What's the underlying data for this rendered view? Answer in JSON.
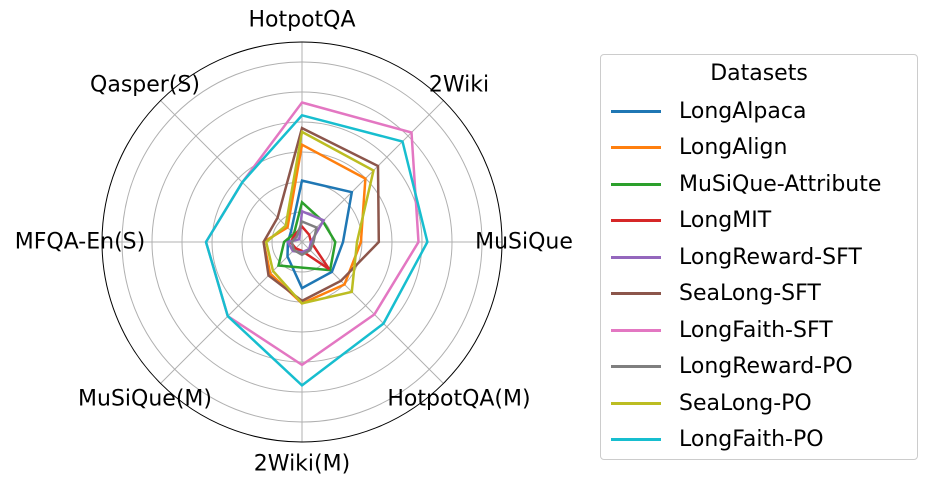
{
  "chart_data": {
    "type": "radar",
    "axes": [
      "HotpotQA",
      "2Wiki",
      "MuSiQue",
      "HotpotQA(M)",
      "2Wiki(M)",
      "MuSiQue(M)",
      "MFQA-En(S)",
      "Qasper(S)"
    ],
    "rlim": [
      0,
      1
    ],
    "grid": true,
    "legend_title": "Datasets",
    "legend_position": "right",
    "series": [
      {
        "name": "LongAlpaca",
        "color": "#1f77b4",
        "values": [
          0.48,
          0.55,
          0.32,
          0.33,
          0.36,
          0.16,
          0.11,
          0.12
        ]
      },
      {
        "name": "LongAlign",
        "color": "#ff7f0e",
        "values": [
          0.76,
          0.7,
          0.46,
          0.47,
          0.48,
          0.35,
          0.3,
          0.16
        ]
      },
      {
        "name": "MuSiQue-Attribute",
        "color": "#2ca02c",
        "values": [
          0.31,
          0.23,
          0.26,
          0.31,
          0.2,
          0.26,
          0.14,
          0.09
        ]
      },
      {
        "name": "LongMIT",
        "color": "#d62728",
        "values": [
          0.12,
          0.08,
          0.07,
          0.3,
          0.07,
          0.07,
          0.09,
          0.08
        ]
      },
      {
        "name": "LongReward-SFT",
        "color": "#9467bd",
        "values": [
          0.24,
          0.24,
          0.07,
          0.08,
          0.08,
          0.1,
          0.11,
          0.03
        ]
      },
      {
        "name": "SeaLong-SFT",
        "color": "#8c564b",
        "values": [
          0.89,
          0.84,
          0.6,
          0.43,
          0.46,
          0.37,
          0.3,
          0.27
        ]
      },
      {
        "name": "LongFaith-SFT",
        "color": "#e377c2",
        "values": [
          1.09,
          1.21,
          0.91,
          0.8,
          0.96,
          0.82,
          0.75,
          0.66
        ]
      },
      {
        "name": "LongReward-PO",
        "color": "#7f7f7f",
        "values": [
          0.16,
          0.16,
          0.09,
          0.09,
          0.1,
          0.09,
          0.08,
          0.06
        ]
      },
      {
        "name": "SeaLong-PO",
        "color": "#bcbd22",
        "values": [
          0.86,
          0.79,
          0.43,
          0.55,
          0.48,
          0.32,
          0.28,
          0.18
        ]
      },
      {
        "name": "LongFaith-PO",
        "color": "#17becf",
        "values": [
          0.99,
          1.11,
          0.98,
          0.9,
          1.12,
          0.82,
          0.75,
          0.66
        ]
      }
    ]
  }
}
